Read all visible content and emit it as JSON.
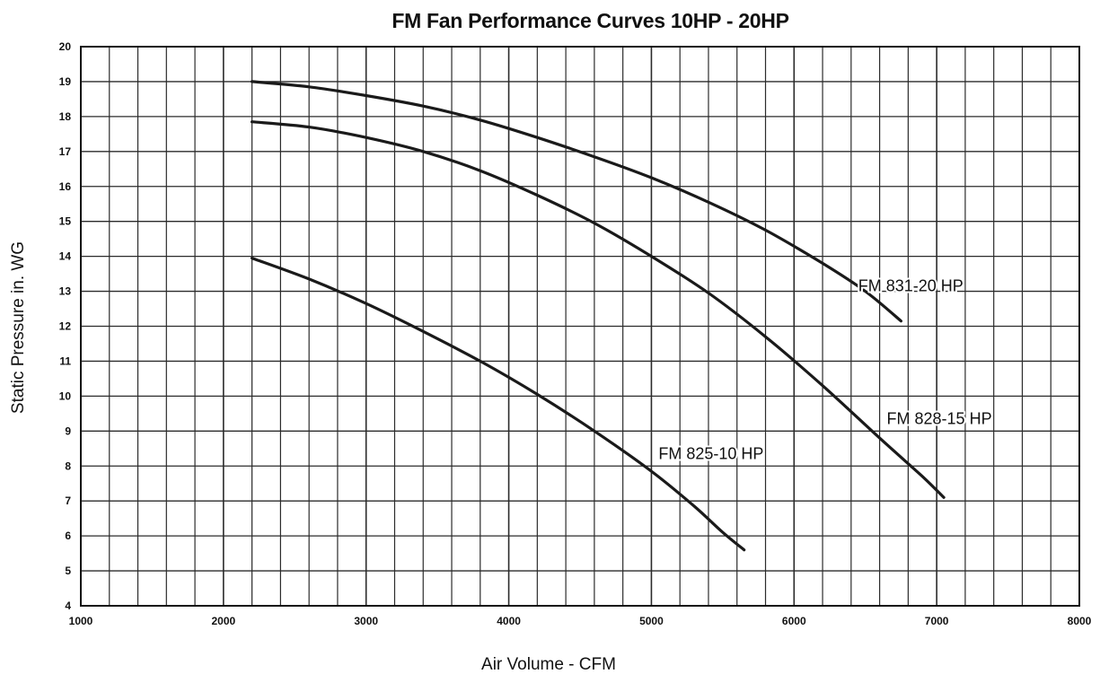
{
  "chart_data": {
    "type": "line",
    "title": "FM Fan Performance Curves 10HP - 20HP",
    "xlabel": "Air Volume - CFM",
    "ylabel": "Static Pressure in. WG",
    "xlim": [
      1000,
      8000
    ],
    "ylim": [
      4,
      20
    ],
    "x_ticks": [
      1000,
      2000,
      3000,
      4000,
      5000,
      6000,
      7000,
      8000
    ],
    "y_ticks": [
      4,
      5,
      6,
      7,
      8,
      9,
      10,
      11,
      12,
      13,
      14,
      15,
      16,
      17,
      18,
      19,
      20
    ],
    "grid": true,
    "x_minor_step": 200,
    "y_minor_step": 1,
    "series": [
      {
        "name": "FM 831-20 HP",
        "label_at": [
          6450,
          13.0
        ],
        "x": [
          2200,
          2600,
          3000,
          3400,
          3800,
          4200,
          4600,
          5000,
          5400,
          5800,
          6200,
          6500,
          6750
        ],
        "y": [
          19.0,
          18.85,
          18.6,
          18.3,
          17.9,
          17.4,
          16.85,
          16.25,
          15.55,
          14.75,
          13.8,
          13.0,
          12.15
        ]
      },
      {
        "name": "FM 828-15 HP",
        "label_at": [
          6650,
          9.2
        ],
        "x": [
          2200,
          2600,
          3000,
          3400,
          3800,
          4200,
          4600,
          5000,
          5400,
          5800,
          6200,
          6600,
          6900,
          7050
        ],
        "y": [
          17.85,
          17.7,
          17.4,
          17.0,
          16.45,
          15.75,
          14.95,
          14.0,
          12.95,
          11.7,
          10.3,
          8.8,
          7.7,
          7.1
        ]
      },
      {
        "name": "FM 825-10 HP",
        "label_at": [
          5050,
          8.2
        ],
        "x": [
          2200,
          2600,
          3000,
          3400,
          3800,
          4200,
          4600,
          5000,
          5300,
          5500,
          5650
        ],
        "y": [
          13.95,
          13.35,
          12.65,
          11.85,
          11.0,
          10.05,
          9.0,
          7.85,
          6.85,
          6.1,
          5.6
        ]
      }
    ],
    "colors": {
      "curve": "#1a1a1a",
      "grid": "#2b2b2b",
      "text": "#111111"
    }
  }
}
